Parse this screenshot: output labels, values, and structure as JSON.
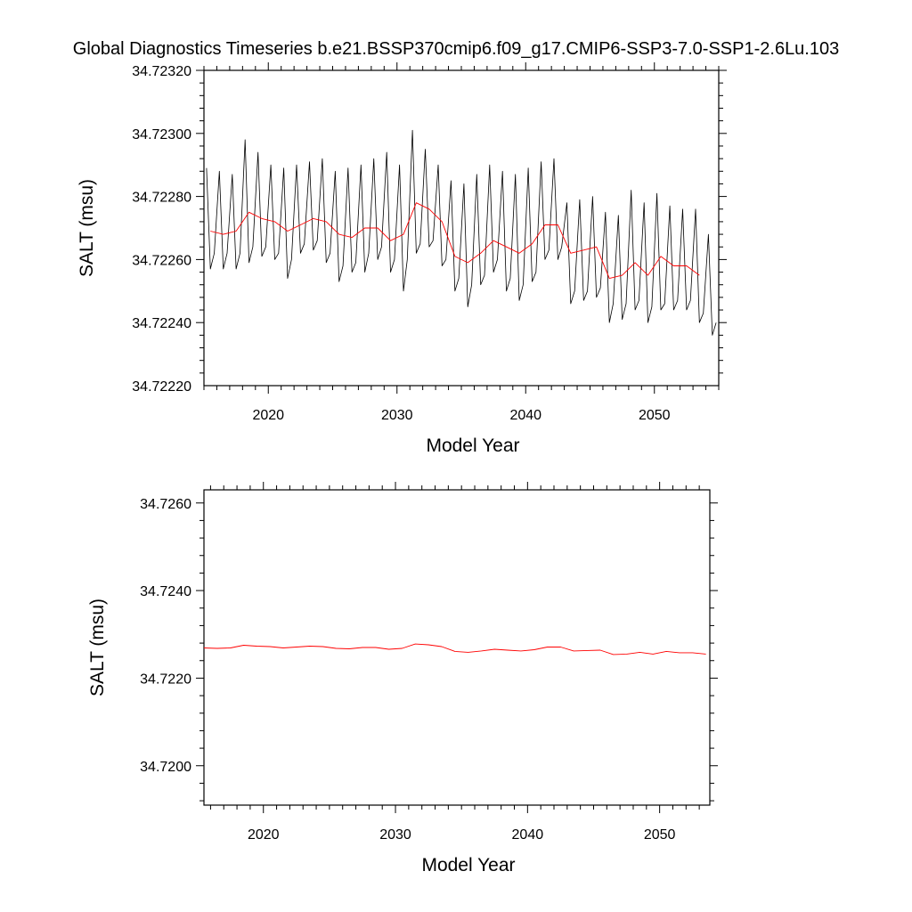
{
  "title": "Global Diagnostics Timeseries b.e21.BSSP370cmip6.f09_g17.CMIP6-SSP3-7.0-SSP1-2.6Lu.103",
  "colors": {
    "monthly": "#000000",
    "annual": "#ff0000",
    "frame": "#000000"
  },
  "chart_data": [
    {
      "type": "line",
      "xlabel": "Model Year",
      "ylabel": "SALT (msu)",
      "xlim": [
        2015,
        2055
      ],
      "ylim": [
        34.7222,
        34.7232
      ],
      "x_ticks": [
        2020,
        2030,
        2040,
        2050
      ],
      "x_tick_labels": [
        "2020",
        "2030",
        "2040",
        "2050"
      ],
      "y_ticks": [
        34.7222,
        34.7224,
        34.7226,
        34.7228,
        34.723,
        34.7232
      ],
      "y_tick_labels": [
        "34.72220",
        "34.72240",
        "34.72260",
        "34.72280",
        "34.72300",
        "34.72320"
      ],
      "grid": false,
      "series": [
        {
          "style": "monthly",
          "x": [
            2015.2,
            2015.5,
            2015.8,
            2016.2,
            2016.5,
            2016.8,
            2017.2,
            2017.5,
            2017.8,
            2018.2,
            2018.5,
            2018.8,
            2019.2,
            2019.5,
            2019.8,
            2020.2,
            2020.5,
            2020.8,
            2021.2,
            2021.5,
            2021.8,
            2022.2,
            2022.5,
            2022.8,
            2023.2,
            2023.5,
            2023.8,
            2024.2,
            2024.5,
            2024.8,
            2025.2,
            2025.5,
            2025.8,
            2026.2,
            2026.5,
            2026.8,
            2027.2,
            2027.5,
            2027.8,
            2028.2,
            2028.5,
            2028.8,
            2029.2,
            2029.5,
            2029.8,
            2030.2,
            2030.5,
            2030.8,
            2031.2,
            2031.5,
            2031.8,
            2032.2,
            2032.5,
            2032.8,
            2033.2,
            2033.5,
            2033.8,
            2034.2,
            2034.5,
            2034.8,
            2035.2,
            2035.5,
            2035.8,
            2036.2,
            2036.5,
            2036.8,
            2037.2,
            2037.5,
            2037.8,
            2038.2,
            2038.5,
            2038.8,
            2039.2,
            2039.5,
            2039.8,
            2040.2,
            2040.5,
            2040.8,
            2041.2,
            2041.5,
            2041.8,
            2042.2,
            2042.5,
            2042.8,
            2043.2,
            2043.5,
            2043.8,
            2044.2,
            2044.5,
            2044.8,
            2045.2,
            2045.5,
            2045.8,
            2046.2,
            2046.5,
            2046.8,
            2047.2,
            2047.5,
            2047.8,
            2048.2,
            2048.5,
            2048.8,
            2049.2,
            2049.5,
            2049.8,
            2050.2,
            2050.5,
            2050.8,
            2051.2,
            2051.5,
            2051.8,
            2052.2,
            2052.5,
            2052.8,
            2053.2,
            2053.5,
            2053.8,
            2054.2,
            2054.5,
            2054.8
          ],
          "y": [
            34.72289,
            34.72257,
            34.72262,
            34.72288,
            34.72257,
            34.72262,
            34.72287,
            34.72257,
            34.72262,
            34.72298,
            34.72259,
            34.72264,
            34.72294,
            34.72261,
            34.72264,
            34.7229,
            34.7226,
            34.72262,
            34.72289,
            34.72254,
            34.7226,
            34.7229,
            34.72262,
            34.72265,
            34.72291,
            34.72263,
            34.72266,
            34.72292,
            34.72259,
            34.72262,
            34.72288,
            34.72253,
            34.72258,
            34.72289,
            34.72256,
            34.72259,
            34.7229,
            34.72256,
            34.72262,
            34.72292,
            34.7226,
            34.72264,
            34.72294,
            34.72256,
            34.7226,
            34.7229,
            34.7225,
            34.7226,
            34.72301,
            34.72262,
            34.72265,
            34.72295,
            34.72264,
            34.72266,
            34.7229,
            34.72258,
            34.7226,
            34.72285,
            34.7225,
            34.72254,
            34.72284,
            34.72245,
            34.72252,
            34.72287,
            34.72252,
            34.72255,
            34.7229,
            34.72256,
            34.7226,
            34.72288,
            34.7225,
            34.72254,
            34.72287,
            34.72247,
            34.72252,
            34.72289,
            34.72253,
            34.72256,
            34.72291,
            34.7226,
            34.72263,
            34.72292,
            34.7226,
            34.72264,
            34.72278,
            34.72246,
            34.7225,
            34.72279,
            34.72247,
            34.7225,
            34.7228,
            34.72248,
            34.72251,
            34.72275,
            34.7224,
            34.72246,
            34.72274,
            34.72241,
            34.72246,
            34.72282,
            34.72244,
            34.72247,
            34.72278,
            34.7224,
            34.72245,
            34.72281,
            34.72244,
            34.72246,
            34.72277,
            34.72244,
            34.72247,
            34.72276,
            34.72244,
            34.72247,
            34.72276,
            34.7224,
            34.72243,
            34.72268,
            34.72236,
            34.7224
          ]
        },
        {
          "style": "annual",
          "x": [
            2015.5,
            2016.5,
            2017.5,
            2018.5,
            2019.5,
            2020.5,
            2021.5,
            2022.5,
            2023.5,
            2024.5,
            2025.5,
            2026.5,
            2027.5,
            2028.5,
            2029.5,
            2030.5,
            2031.5,
            2032.5,
            2033.5,
            2034.5,
            2035.5,
            2036.5,
            2037.5,
            2038.5,
            2039.5,
            2040.5,
            2041.5,
            2042.5,
            2043.5,
            2044.5,
            2045.5,
            2046.5,
            2047.5,
            2048.5,
            2049.5,
            2050.5,
            2051.5,
            2052.5,
            2053.5
          ],
          "y": [
            34.72269,
            34.72268,
            34.72269,
            34.72275,
            34.72273,
            34.72272,
            34.72269,
            34.72271,
            34.72273,
            34.72272,
            34.72268,
            34.72267,
            34.7227,
            34.7227,
            34.72266,
            34.72268,
            34.72278,
            34.72276,
            34.72272,
            34.72261,
            34.72259,
            34.72262,
            34.72266,
            34.72264,
            34.72262,
            34.72265,
            34.72271,
            34.72271,
            34.72262,
            34.72263,
            34.72264,
            34.72254,
            34.72255,
            34.72259,
            34.72255,
            34.72261,
            34.72258,
            34.72258,
            34.72255
          ]
        }
      ]
    },
    {
      "type": "line",
      "xlabel": "Model Year",
      "ylabel": "SALT (msu)",
      "xlim": [
        2015.5,
        2053.8
      ],
      "ylim": [
        34.7191,
        34.7263
      ],
      "x_ticks": [
        2020,
        2030,
        2040,
        2050
      ],
      "x_tick_labels": [
        "2020",
        "2030",
        "2040",
        "2050"
      ],
      "y_ticks": [
        34.72,
        34.722,
        34.724,
        34.726
      ],
      "y_tick_labels": [
        "34.7200",
        "34.7220",
        "34.7240",
        "34.7260"
      ],
      "grid": false,
      "series": [
        {
          "style": "annual",
          "x": [
            2015.5,
            2016.5,
            2017.5,
            2018.5,
            2019.5,
            2020.5,
            2021.5,
            2022.5,
            2023.5,
            2024.5,
            2025.5,
            2026.5,
            2027.5,
            2028.5,
            2029.5,
            2030.5,
            2031.5,
            2032.5,
            2033.5,
            2034.5,
            2035.5,
            2036.5,
            2037.5,
            2038.5,
            2039.5,
            2040.5,
            2041.5,
            2042.5,
            2043.5,
            2044.5,
            2045.5,
            2046.5,
            2047.5,
            2048.5,
            2049.5,
            2050.5,
            2051.5,
            2052.5,
            2053.5
          ],
          "y": [
            34.72269,
            34.72268,
            34.72269,
            34.72275,
            34.72273,
            34.72272,
            34.72269,
            34.72271,
            34.72273,
            34.72272,
            34.72268,
            34.72267,
            34.7227,
            34.7227,
            34.72266,
            34.72268,
            34.72278,
            34.72276,
            34.72272,
            34.72261,
            34.72259,
            34.72262,
            34.72266,
            34.72264,
            34.72262,
            34.72265,
            34.72271,
            34.72271,
            34.72262,
            34.72263,
            34.72264,
            34.72254,
            34.72255,
            34.72259,
            34.72255,
            34.72261,
            34.72258,
            34.72258,
            34.72255
          ]
        }
      ]
    }
  ]
}
